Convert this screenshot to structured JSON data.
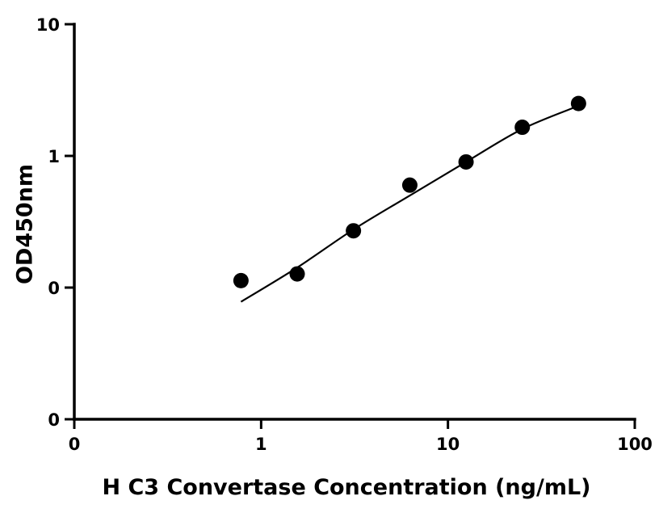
{
  "chart_data": {
    "type": "scatter",
    "title": "",
    "xlabel": "H C3 Convertase Concentration (ng/mL)",
    "ylabel": "OD450nm",
    "x_scale": "log",
    "y_scale": "log",
    "xlim": [
      0.1,
      100
    ],
    "ylim": [
      0.01,
      10
    ],
    "x_ticks": [
      {
        "value": 0.1,
        "label": "0"
      },
      {
        "value": 1,
        "label": "1"
      },
      {
        "value": 10,
        "label": "10"
      },
      {
        "value": 100,
        "label": "100"
      }
    ],
    "y_ticks": [
      {
        "value": 0.01,
        "label": "0"
      },
      {
        "value": 0.1,
        "label": "0"
      },
      {
        "value": 1,
        "label": "1"
      },
      {
        "value": 10,
        "label": "10"
      }
    ],
    "grid": false,
    "legend": "none",
    "color": "#000000",
    "series": [
      {
        "points": [
          {
            "x": 0.78,
            "y": 0.113
          },
          {
            "x": 1.56,
            "y": 0.127
          },
          {
            "x": 3.12,
            "y": 0.27
          },
          {
            "x": 6.25,
            "y": 0.6
          },
          {
            "x": 12.5,
            "y": 0.9
          },
          {
            "x": 25,
            "y": 1.65
          },
          {
            "x": 50,
            "y": 2.5
          }
        ]
      }
    ],
    "fit_curve": [
      {
        "x": 0.78,
        "y": 0.078
      },
      {
        "x": 1.56,
        "y": 0.142
      },
      {
        "x": 3.12,
        "y": 0.276
      },
      {
        "x": 6.25,
        "y": 0.5
      },
      {
        "x": 12.5,
        "y": 0.9
      },
      {
        "x": 25,
        "y": 1.6
      },
      {
        "x": 50,
        "y": 2.4
      }
    ]
  }
}
